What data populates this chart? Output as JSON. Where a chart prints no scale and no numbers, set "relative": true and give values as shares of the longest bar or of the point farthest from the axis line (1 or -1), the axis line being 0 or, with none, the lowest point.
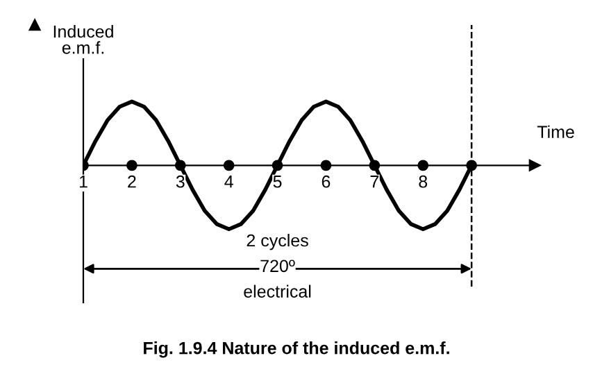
{
  "chart_data": {
    "type": "line",
    "relative": true,
    "title": "Fig. 1.9.4 Nature of the induced e.m.f.",
    "ylabel": "Induced\ne.m.f.",
    "xlabel": "Time",
    "xlim": [
      1,
      10.3
    ],
    "xticks": [
      1,
      2,
      3,
      4,
      5,
      6,
      7,
      8
    ],
    "series": [
      {
        "color": "#000000",
        "x": [
          1,
          1.25,
          1.5,
          1.75,
          2,
          2.25,
          2.5,
          2.75,
          3,
          3.25,
          3.5,
          3.75,
          4,
          4.25,
          4.5,
          4.75,
          5,
          5.25,
          5.5,
          5.75,
          6,
          6.25,
          6.5,
          6.75,
          7,
          7.25,
          7.5,
          7.75,
          8,
          8.25,
          8.5,
          8.75,
          9
        ],
        "values": [
          0,
          0.38,
          0.71,
          0.92,
          1,
          0.92,
          0.71,
          0.38,
          0,
          -0.38,
          -0.71,
          -0.92,
          -1,
          -0.92,
          -0.71,
          -0.38,
          0,
          0.38,
          0.71,
          0.92,
          1,
          0.92,
          0.71,
          0.38,
          0,
          -0.38,
          -0.71,
          -0.92,
          -1,
          -0.92,
          -0.71,
          -0.38,
          0
        ]
      },
      {
        "type": "scatter",
        "color": "#000000",
        "marker": "circle",
        "x": [
          1,
          2,
          3,
          4,
          5,
          6,
          7,
          8,
          9
        ],
        "values": [
          0,
          0,
          0,
          0,
          0,
          0,
          0,
          0,
          0
        ]
      }
    ],
    "ref_lines": [
      {
        "axis": "x",
        "value": 9,
        "line_style": "dashed",
        "color": "#000000"
      }
    ],
    "annotations": [
      "2 cycles",
      "720º",
      "electrical"
    ]
  }
}
